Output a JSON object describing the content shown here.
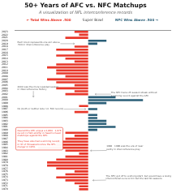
{
  "chart_data": {
    "type": "bar",
    "orientation": "horizontal",
    "title": "50+ Years of AFC vs. NFC Matchups",
    "subtitle": "A visualization of NFL interconference records",
    "xlabel": "Super Bowl",
    "categories": [
      "2023",
      "2022",
      "2021",
      "2020",
      "2019",
      "2018",
      "2017",
      "2016",
      "2015",
      "2014",
      "2013",
      "2012",
      "2011",
      "2010",
      "2009",
      "2008",
      "2007",
      "2006",
      "2005",
      "2004",
      "2003",
      "2002",
      "2001",
      "2000",
      "1999",
      "1998",
      "1997",
      "1996",
      "1995",
      "1994",
      "1993",
      "1992",
      "1991",
      "1990",
      "1989",
      "1988",
      "1987",
      "1986",
      "1985",
      "1984",
      "1983",
      "1982",
      "1981",
      "1980",
      "1979",
      "1978",
      "1977",
      "1976",
      "1975",
      "1974",
      "1973",
      "1972",
      "1971",
      "1970"
    ],
    "series": [
      {
        "name": "← Total Wins Above .500",
        "color": "#E8372A",
        "values": [
          -3,
          -2,
          -5,
          0,
          0,
          -3,
          -7,
          -3,
          -7,
          -5,
          -3,
          -7,
          -9,
          -7,
          -7,
          -5,
          -9,
          -7,
          -3,
          -7,
          -3,
          -5,
          0,
          0,
          0,
          -2,
          0,
          -3,
          0,
          0,
          0,
          0,
          0,
          0,
          -5,
          -3,
          -5,
          -7,
          -7,
          -11,
          -5,
          -2,
          -5,
          -7,
          -9,
          -9,
          -7,
          -3,
          -5,
          -7,
          -5,
          -3,
          -2,
          -2
        ]
      },
      {
        "name": "NFC Wins Above .500 →",
        "color": "#2B5F78",
        "values": [
          0,
          0,
          0,
          4,
          2,
          0,
          0,
          0,
          0,
          0,
          0,
          0,
          0,
          0,
          0,
          0,
          0,
          0,
          0,
          0,
          0,
          0,
          6,
          12,
          4,
          0,
          2,
          0,
          2,
          2,
          4,
          4,
          6,
          2,
          0,
          0,
          0,
          0,
          0,
          0,
          0,
          0,
          0,
          0,
          0,
          0,
          0,
          0,
          0,
          0,
          0,
          0,
          0,
          0
        ]
      }
    ],
    "xlim": [
      -16,
      18
    ],
    "grid": false,
    "tick_labels": "y",
    "annotations": [
      "Each block represents one win above\n.500 in interconference play",
      "2000 was the more lopsided season\nin interconference history",
      "No (both or neither side >4 .500 record)",
      "Overall the AFC enjoys a 1,834 - 1,676\nrecord (1.524 wins%) in head-to-head\nmatchups against the NFC.\n\nThey have also had a winning record\nin 37 of 53 seasons since the NFL\nmerger in 1970.",
      "The NFC had a 25-season streak without\na winning record against the AFC",
      "1982 - 1986 was the era of near\nparity in interconference play",
      "The NFC got off to a strong start, but would have a losing\ninterconference record in but the last 30 seasons."
    ]
  }
}
